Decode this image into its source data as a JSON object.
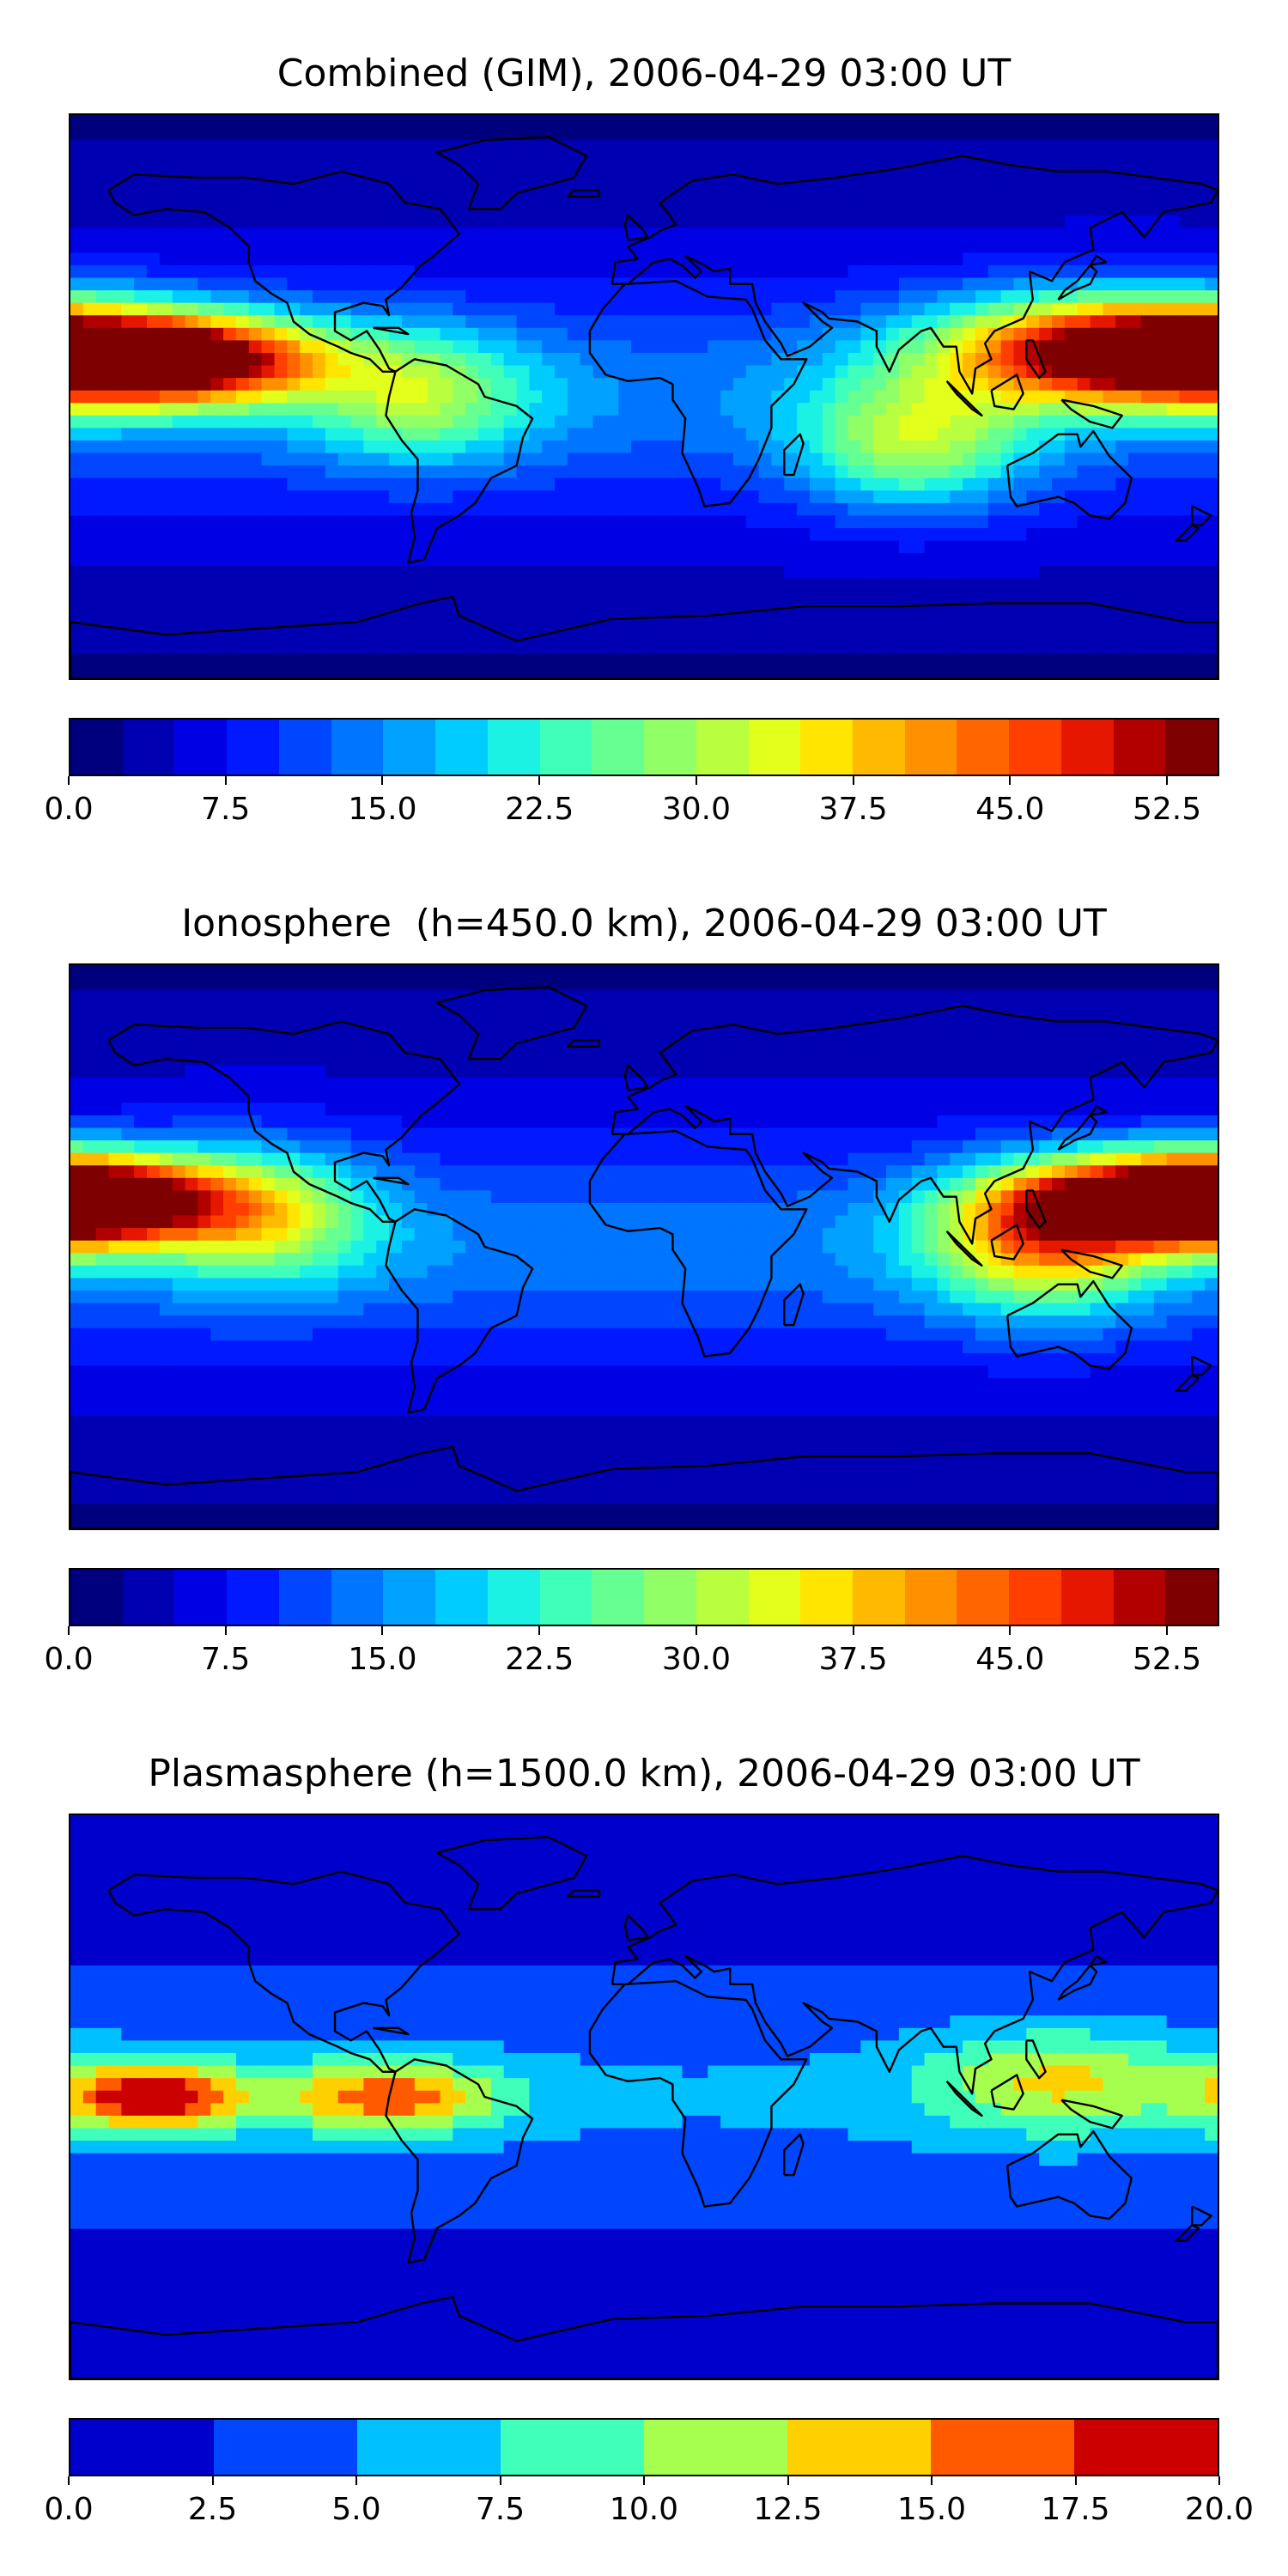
{
  "panels": [
    {
      "title": "Combined (GIM), 2006-04-29 03:00 UT",
      "vmax": 55,
      "colorbar": {
        "colors": [
          "#00007f",
          "#0000b2",
          "#0000e5",
          "#0019ff",
          "#0046ff",
          "#0075ff",
          "#00a1ff",
          "#00ccff",
          "#1cf2e3",
          "#3fffba",
          "#66ff91",
          "#91ff66",
          "#baff3f",
          "#e3ff1c",
          "#ffe500",
          "#ffba00",
          "#ff9100",
          "#ff6600",
          "#ff3f00",
          "#e51700",
          "#b20000",
          "#7f0000"
        ],
        "ticks": [
          "0.0",
          "7.5",
          "15.0",
          "22.5",
          "30.0",
          "37.5",
          "45.0",
          "52.5"
        ],
        "tick_values": [
          0,
          7.5,
          15,
          22.5,
          30,
          37.5,
          45,
          52.5
        ],
        "min": 0,
        "max": 55
      },
      "features": [
        {
          "lon": -150,
          "lat": 12,
          "value": 54,
          "spread_lon": 35,
          "spread_lat": 10
        },
        {
          "lon": 150,
          "lat": 15,
          "value": 52,
          "spread_lon": 40,
          "spread_lat": 12
        },
        {
          "lon": -70,
          "lat": 0,
          "value": 22,
          "spread_lon": 25,
          "spread_lat": 15
        },
        {
          "lon": 85,
          "lat": -15,
          "value": 25,
          "spread_lon": 25,
          "spread_lat": 15
        }
      ]
    },
    {
      "title": "Ionosphere  (h=450.0 km), 2006-04-29 03:00 UT",
      "vmax": 55,
      "colorbar": {
        "colors": [
          "#00007f",
          "#0000b2",
          "#0000e5",
          "#0019ff",
          "#0046ff",
          "#0075ff",
          "#00a1ff",
          "#00ccff",
          "#1cf2e3",
          "#3fffba",
          "#66ff91",
          "#91ff66",
          "#baff3f",
          "#e3ff1c",
          "#ffe500",
          "#ffba00",
          "#ff9100",
          "#ff6600",
          "#ff3f00",
          "#e51700",
          "#b20000",
          "#7f0000"
        ],
        "ticks": [
          "0.0",
          "7.5",
          "15.0",
          "22.5",
          "30.0",
          "37.5",
          "45.0",
          "52.5"
        ],
        "tick_values": [
          0,
          7.5,
          15,
          22.5,
          30,
          37.5,
          45,
          52.5
        ],
        "min": 0,
        "max": 55
      },
      "features": [
        {
          "lon": -175,
          "lat": 15,
          "value": 42,
          "spread_lon": 30,
          "spread_lat": 10
        },
        {
          "lon": 160,
          "lat": 15,
          "value": 45,
          "spread_lon": 35,
          "spread_lat": 10
        },
        {
          "lon": 125,
          "lat": 0,
          "value": 30,
          "spread_lon": 25,
          "spread_lat": 15
        },
        {
          "lon": -120,
          "lat": 10,
          "value": 25,
          "spread_lon": 25,
          "spread_lat": 15
        }
      ]
    },
    {
      "title": "Plasmasphere (h=1500.0 km), 2006-04-29 03:00 UT",
      "vmax": 20,
      "colorbar": {
        "colors": [
          "#0000cc",
          "#0046ff",
          "#00c0ff",
          "#3fffba",
          "#a6ff4f",
          "#ffd000",
          "#ff5a00",
          "#cc0000"
        ],
        "ticks": [
          "0.0",
          "2.5",
          "5.0",
          "7.5",
          "10.0",
          "12.5",
          "15.0",
          "17.5",
          "20.0"
        ],
        "tick_values": [
          0,
          2.5,
          5,
          7.5,
          10,
          12.5,
          15,
          17.5,
          20
        ],
        "min": 0,
        "max": 20
      },
      "features": [
        {
          "lon": -155,
          "lat": 0,
          "value": 17,
          "spread_lon": 20,
          "spread_lat": 8
        },
        {
          "lon": -80,
          "lat": 0,
          "value": 14,
          "spread_lon": 25,
          "spread_lat": 8
        },
        {
          "lon": 130,
          "lat": 5,
          "value": 10,
          "spread_lon": 30,
          "spread_lat": 12
        }
      ]
    }
  ]
}
